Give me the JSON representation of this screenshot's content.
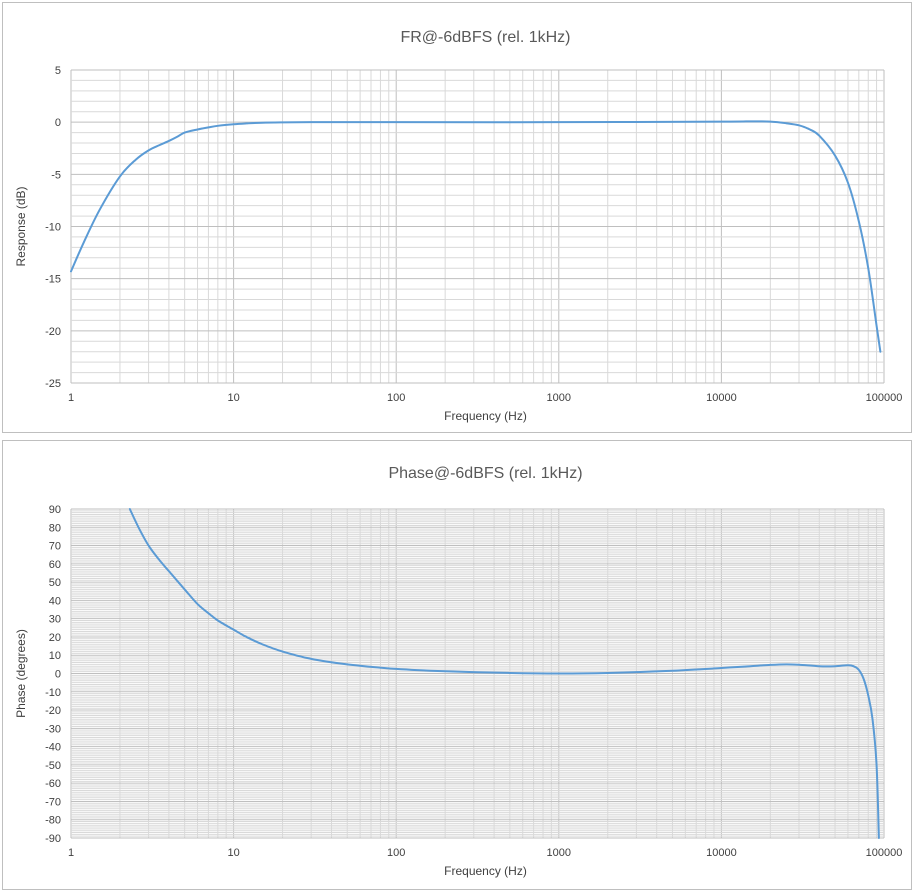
{
  "chart_data": [
    {
      "type": "line",
      "title": "FR@-6dBFS (rel. 1kHz)",
      "xlabel": "Frequency (Hz)",
      "ylabel": "Response (dB)",
      "xscale": "log",
      "xlim": [
        1,
        100000
      ],
      "ylim": [
        -25,
        5
      ],
      "xticks": [
        "1",
        "10",
        "100",
        "1000",
        "10000",
        "100000"
      ],
      "yticks": [
        "5",
        "0",
        "-5",
        "-10",
        "-15",
        "-20",
        "-25"
      ],
      "grid": true,
      "line_color": "#5b9bd5",
      "series": [
        {
          "x": [
            1,
            1.2,
            1.5,
            2,
            2.5,
            3,
            3.5,
            4,
            4.5,
            5,
            6,
            7,
            8,
            10,
            12,
            15,
            20,
            30,
            50,
            100,
            1000,
            10000,
            15000,
            20000,
            25000,
            30000,
            35000,
            40000,
            50000,
            60000,
            70000,
            80000,
            90000,
            95000
          ],
          "y": [
            -14.3,
            -11.5,
            -8.4,
            -5.2,
            -3.6,
            -2.7,
            -2.2,
            -1.8,
            -1.4,
            -1.0,
            -0.7,
            -0.5,
            -0.35,
            -0.2,
            -0.12,
            -0.05,
            -0.02,
            0,
            0,
            0,
            0,
            0.05,
            0.08,
            0.05,
            -0.1,
            -0.3,
            -0.7,
            -1.3,
            -3.2,
            -5.8,
            -9.5,
            -14.0,
            -19.5,
            -22.0
          ]
        }
      ]
    },
    {
      "type": "line",
      "title": "Phase@-6dBFS (rel. 1kHz)",
      "xlabel": "Frequency (Hz)",
      "ylabel": "Phase (degrees)",
      "xscale": "log",
      "xlim": [
        1,
        100000
      ],
      "ylim": [
        -90,
        90
      ],
      "xticks": [
        "1",
        "10",
        "100",
        "1000",
        "10000",
        "100000"
      ],
      "yticks": [
        "90",
        "80",
        "70",
        "60",
        "50",
        "40",
        "30",
        "20",
        "10",
        "0",
        "-10",
        "-20",
        "-30",
        "-40",
        "-50",
        "-60",
        "-70",
        "-80",
        "-90"
      ],
      "grid": true,
      "line_color": "#5b9bd5",
      "series": [
        {
          "x": [
            2.3,
            2.6,
            3,
            3.5,
            4,
            5,
            6,
            7,
            8,
            10,
            12,
            15,
            20,
            30,
            50,
            100,
            200,
            500,
            1000,
            2000,
            5000,
            10000,
            15000,
            20000,
            25000,
            30000,
            40000,
            50000,
            60000,
            65000,
            70000,
            75000,
            80000,
            85000,
            90000,
            93000
          ],
          "y": [
            90,
            80,
            70,
            62,
            56,
            46,
            38,
            33,
            29,
            24,
            20,
            16,
            12,
            8,
            5,
            2.5,
            1.2,
            0.3,
            0,
            0.3,
            1.5,
            3,
            4,
            4.7,
            5,
            4.8,
            4,
            4,
            4.5,
            4,
            2,
            -3,
            -12,
            -25,
            -50,
            -90
          ]
        }
      ]
    }
  ]
}
